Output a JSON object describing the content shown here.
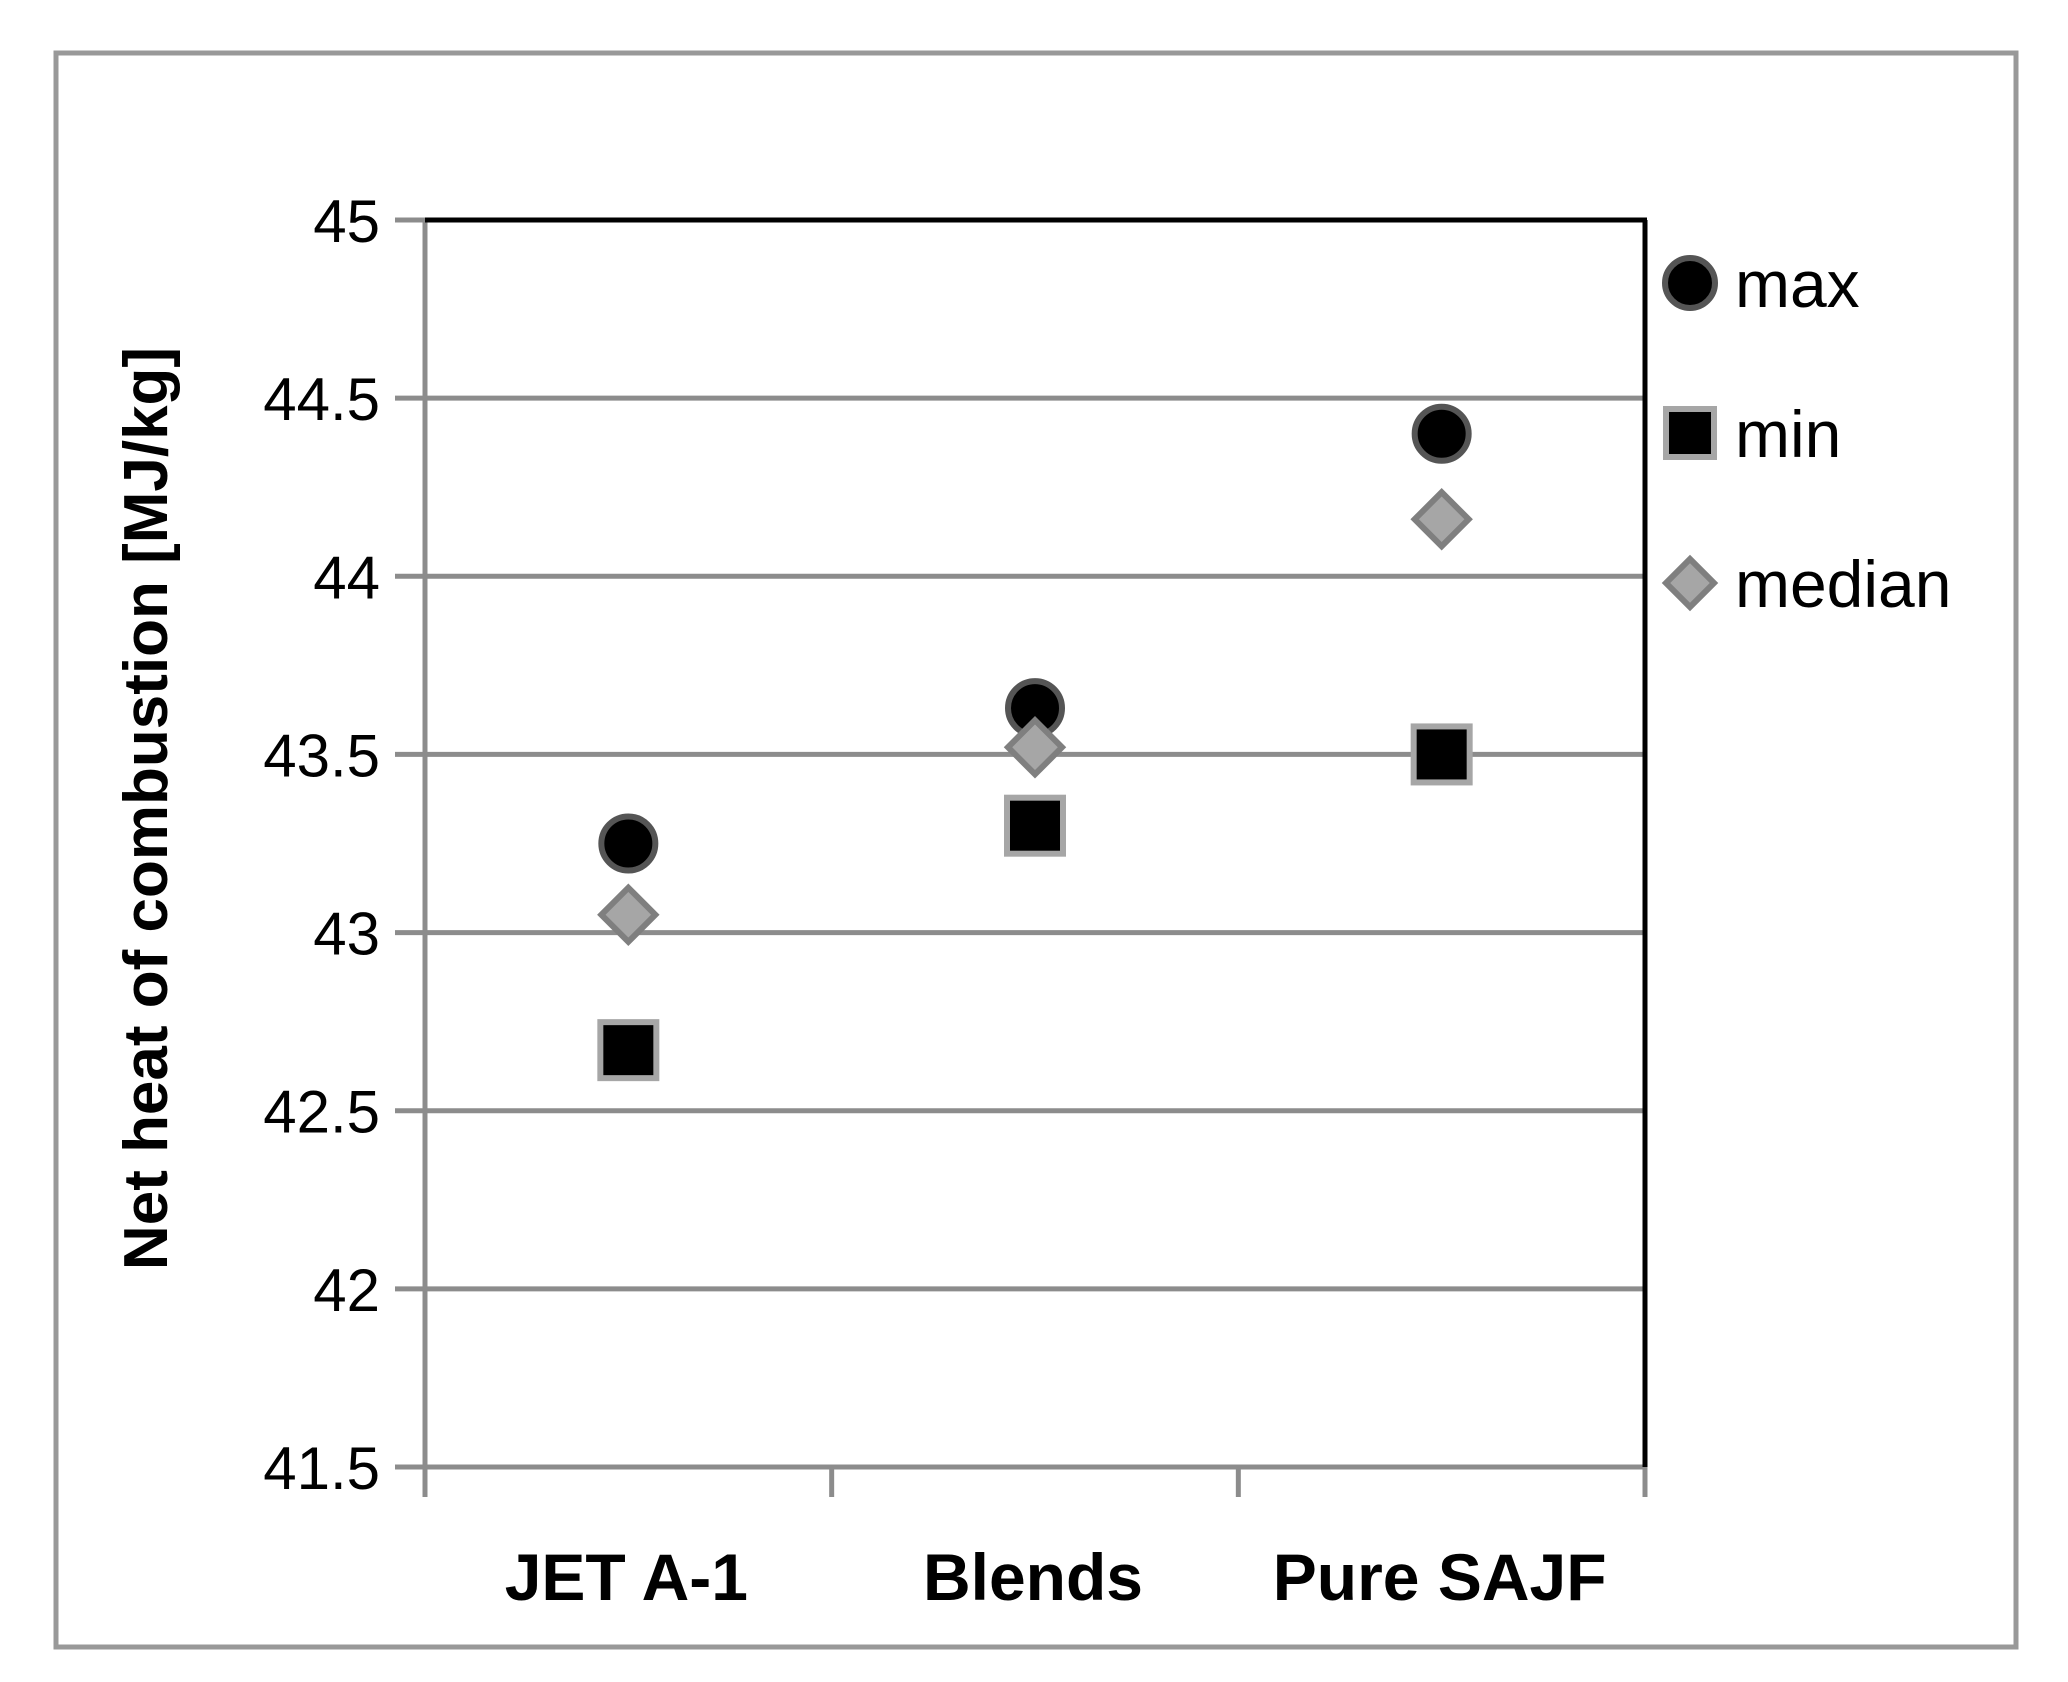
{
  "chart_data": {
    "type": "scatter",
    "title": "",
    "xlabel": "",
    "ylabel": "Net heat of combustion [MJ/kg]",
    "categories": [
      "JET A-1",
      "Blends",
      "Pure SAJF"
    ],
    "ylim": [
      41.5,
      45
    ],
    "yticks": [
      "41.5",
      "42",
      "42.5",
      "43",
      "43.5",
      "44",
      "44.5",
      "45"
    ],
    "grid": "horizontal",
    "legend_position": "right",
    "series": [
      {
        "name": "max",
        "values": [
          43.25,
          43.63,
          44.4
        ],
        "marker": "circle",
        "fill": "#000000",
        "stroke": "#555555"
      },
      {
        "name": "min",
        "values": [
          42.67,
          43.3,
          43.5
        ],
        "marker": "square",
        "fill": "#000000",
        "stroke": "#a6a6a6"
      },
      {
        "name": "median",
        "values": [
          43.05,
          43.52,
          44.16
        ],
        "marker": "diamond",
        "fill": "#a6a6a6",
        "stroke": "#7f7f7f"
      }
    ],
    "colors": {
      "gridline": "#8c8c8c",
      "frame": "#000000",
      "outer_border": "#999999"
    }
  }
}
